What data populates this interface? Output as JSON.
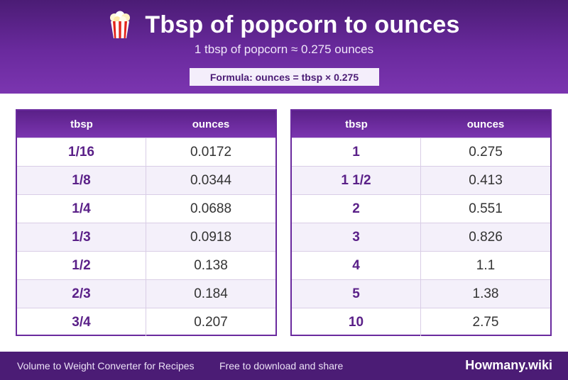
{
  "header": {
    "title": "Tbsp of popcorn to ounces",
    "subtitle": "1 tbsp of popcorn ≈ 0.275 ounces",
    "formula": "Formula: ounces = tbsp × 0.275",
    "icon": "popcorn-icon"
  },
  "tables": [
    {
      "headers": [
        "tbsp",
        "ounces"
      ],
      "rows": [
        [
          "1/16",
          "0.0172"
        ],
        [
          "1/8",
          "0.0344"
        ],
        [
          "1/4",
          "0.0688"
        ],
        [
          "1/3",
          "0.0918"
        ],
        [
          "1/2",
          "0.138"
        ],
        [
          "2/3",
          "0.184"
        ],
        [
          "3/4",
          "0.207"
        ]
      ]
    },
    {
      "headers": [
        "tbsp",
        "ounces"
      ],
      "rows": [
        [
          "1",
          "0.275"
        ],
        [
          "1 1/2",
          "0.413"
        ],
        [
          "2",
          "0.551"
        ],
        [
          "3",
          "0.826"
        ],
        [
          "4",
          "1.1"
        ],
        [
          "5",
          "1.38"
        ],
        [
          "10",
          "2.75"
        ]
      ]
    }
  ],
  "footer": {
    "left": "Volume to Weight Converter for Recipes",
    "middle": "Free to download and share",
    "brand": "Howmany.wiki"
  },
  "colors": {
    "primary": "#6a2a9e",
    "dark": "#4b1c75",
    "row_alt": "#f4f0fa"
  }
}
